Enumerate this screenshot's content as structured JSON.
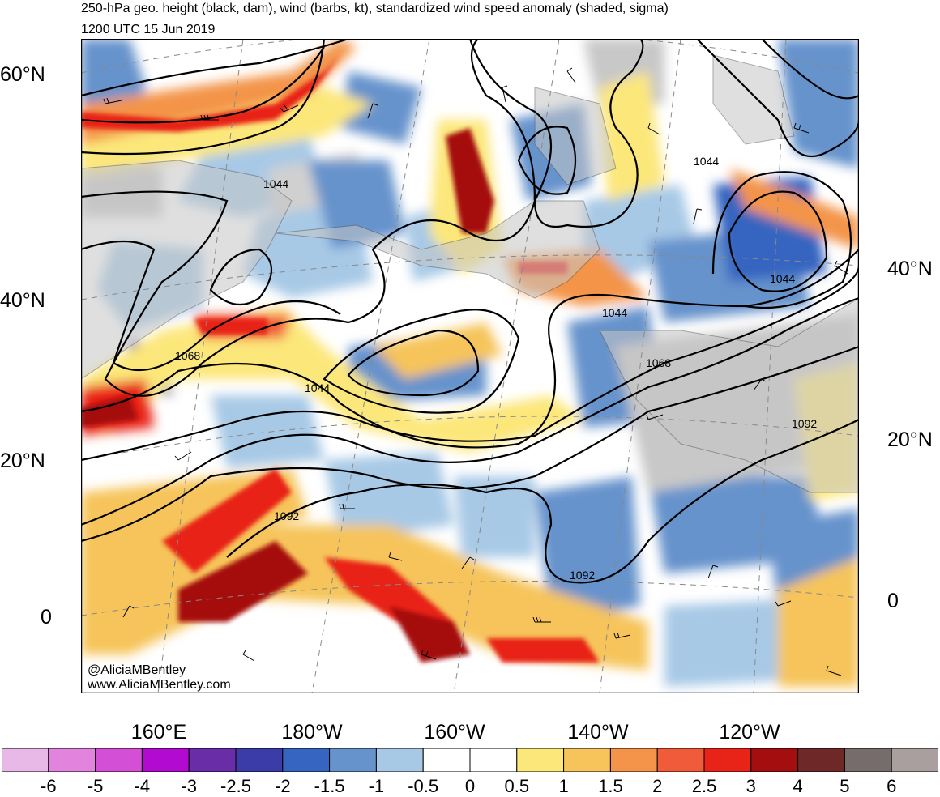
{
  "title": {
    "line1": "250-hPa geo. height (black, dam), wind (barbs, kt), standardized wind speed anomaly (shaded, sigma)",
    "line2": "1200 UTC 15 Jun 2019"
  },
  "lat_labels_left": [
    "60°N",
    "40°N",
    "20°N",
    "0"
  ],
  "lat_labels_right": [
    "40°N",
    "20°N",
    "0"
  ],
  "lon_labels": [
    "160°E",
    "180°W",
    "160°W",
    "140°W",
    "120°W"
  ],
  "contour_labels": [
    "1044",
    "1044",
    "1044",
    "1044",
    "1044",
    "1068",
    "1068",
    "1092",
    "1092",
    "1092"
  ],
  "watermark": {
    "line1": "@AliciaMBentley",
    "line2": "www.AliciaMBentley.com"
  },
  "colorbar": {
    "colors": [
      "#e8b9e6",
      "#e283dd",
      "#d34fd6",
      "#b20ad0",
      "#6a2da8",
      "#3c3ca8",
      "#3565c0",
      "#6693cc",
      "#a7c9e6",
      "#ffffff",
      "#ffffff",
      "#fce77a",
      "#f6c45a",
      "#f3944a",
      "#f05c3a",
      "#e82418",
      "#a50e0e",
      "#6e2828",
      "#766c6c",
      "#a99f9f"
    ],
    "labels": [
      "-6",
      "-5",
      "-4",
      "-3",
      "-2.5",
      "-2",
      "-1.5",
      "-1",
      "-0.5",
      "0",
      "0.5",
      "1",
      "1.5",
      "2",
      "2.5",
      "3",
      "4",
      "5",
      "6"
    ]
  }
}
